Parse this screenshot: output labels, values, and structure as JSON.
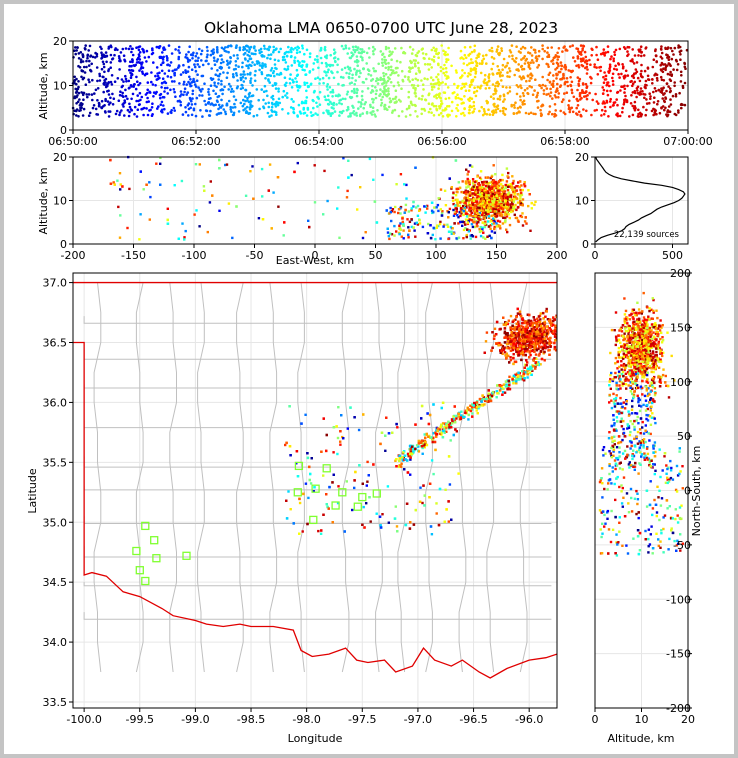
{
  "figure": {
    "title": "Oklahoma LMA 0650-0700 UTC June 28, 2023",
    "source_count": "22,139 sources"
  },
  "colors": {
    "state_border": "#e00000",
    "county_lines": "#c0c0c0",
    "station_marker": "#80ff30",
    "frame_background": "#c4c4c4"
  },
  "chart_data": [
    {
      "id": "time-altitude",
      "type": "scatter",
      "xlabel": "",
      "ylabel": "Altitude, km",
      "xticks": [
        "06:50:00",
        "06:52:00",
        "06:54:00",
        "06:56:00",
        "06:58:00",
        "07:00:00"
      ],
      "xlim_minutes": [
        0,
        10
      ],
      "ylim": [
        0,
        20
      ],
      "yticks": [
        0,
        10,
        20
      ],
      "color_scale": "jet by time",
      "altitude_band_km": [
        3,
        19
      ]
    },
    {
      "id": "ew-altitude",
      "type": "scatter",
      "xlabel": "East-West, km",
      "ylabel": "Altitude, km",
      "xlim": [
        -200,
        200
      ],
      "xticks": [
        -200,
        -150,
        -100,
        -50,
        0,
        50,
        100,
        150,
        200
      ],
      "ylim": [
        0,
        20
      ],
      "yticks": [
        0,
        10,
        20
      ]
    },
    {
      "id": "altitude-histogram",
      "type": "line",
      "xlim": [
        0,
        600
      ],
      "xticks": [
        0,
        500
      ],
      "ylim": [
        0,
        20
      ],
      "yticks": [
        0,
        10,
        20
      ],
      "profile": [
        [
          0.5,
          5
        ],
        [
          1,
          20
        ],
        [
          1.5,
          40
        ],
        [
          2,
          80
        ],
        [
          2.5,
          130
        ],
        [
          3,
          170
        ],
        [
          3.5,
          190
        ],
        [
          4,
          200
        ],
        [
          4.5,
          220
        ],
        [
          5,
          250
        ],
        [
          5.5,
          280
        ],
        [
          6,
          300
        ],
        [
          6.5,
          330
        ],
        [
          7,
          360
        ],
        [
          7.5,
          380
        ],
        [
          8,
          400
        ],
        [
          8.5,
          430
        ],
        [
          9,
          470
        ],
        [
          9.5,
          510
        ],
        [
          10,
          540
        ],
        [
          10.5,
          560
        ],
        [
          11,
          570
        ],
        [
          11.5,
          580
        ],
        [
          12,
          570
        ],
        [
          12.5,
          540
        ],
        [
          13,
          500
        ],
        [
          13.5,
          430
        ],
        [
          14,
          320
        ],
        [
          14.5,
          240
        ],
        [
          15,
          170
        ],
        [
          15.5,
          120
        ],
        [
          16,
          90
        ],
        [
          16.5,
          70
        ],
        [
          17,
          60
        ],
        [
          17.5,
          50
        ],
        [
          18,
          40
        ],
        [
          18.5,
          30
        ],
        [
          19,
          20
        ],
        [
          19.5,
          10
        ],
        [
          20,
          5
        ]
      ]
    },
    {
      "id": "plan-view",
      "type": "scatter",
      "xlabel": "Longitude",
      "ylabel": "Latitude",
      "xlim": [
        -100.1,
        -95.75
      ],
      "xticks": [
        -100.0,
        -99.5,
        -99.0,
        -98.5,
        -98.0,
        -97.5,
        -97.0,
        -96.5,
        -96.0
      ],
      "xtick_labels": [
        "-100.0",
        "-99.5",
        "-99.0",
        "-98.5",
        "-98.0",
        "-97.5",
        "-97.0",
        "-96.5",
        "-96.0"
      ],
      "ylim": [
        33.45,
        37.08
      ],
      "yticks": [
        33.5,
        34.0,
        34.5,
        35.0,
        35.5,
        36.0,
        36.5,
        37.0
      ],
      "ytick_labels": [
        "33.5",
        "34.0",
        "34.5",
        "35.0",
        "35.5",
        "36.0",
        "36.5",
        "37.0"
      ],
      "stations": [
        [
          -99.45,
          34.97
        ],
        [
          -99.37,
          34.85
        ],
        [
          -99.53,
          34.76
        ],
        [
          -99.35,
          34.7
        ],
        [
          -99.5,
          34.6
        ],
        [
          -99.45,
          34.51
        ],
        [
          -99.08,
          34.72
        ],
        [
          -98.07,
          35.47
        ],
        [
          -97.82,
          35.45
        ],
        [
          -98.08,
          35.25
        ],
        [
          -97.92,
          35.28
        ],
        [
          -97.68,
          35.25
        ],
        [
          -97.94,
          35.02
        ],
        [
          -97.74,
          35.14
        ],
        [
          -97.5,
          35.21
        ],
        [
          -97.37,
          35.24
        ],
        [
          -97.54,
          35.13
        ]
      ]
    },
    {
      "id": "altitude-ns",
      "type": "scatter",
      "xlabel": "Altitude, km",
      "ylabel": "North-South, km",
      "xlim": [
        0,
        20
      ],
      "xticks": [
        0,
        10,
        20
      ],
      "ylim": [
        -200,
        200
      ],
      "yticks": [
        -200,
        -150,
        -100,
        -50,
        0,
        50,
        100,
        150,
        200
      ]
    }
  ]
}
